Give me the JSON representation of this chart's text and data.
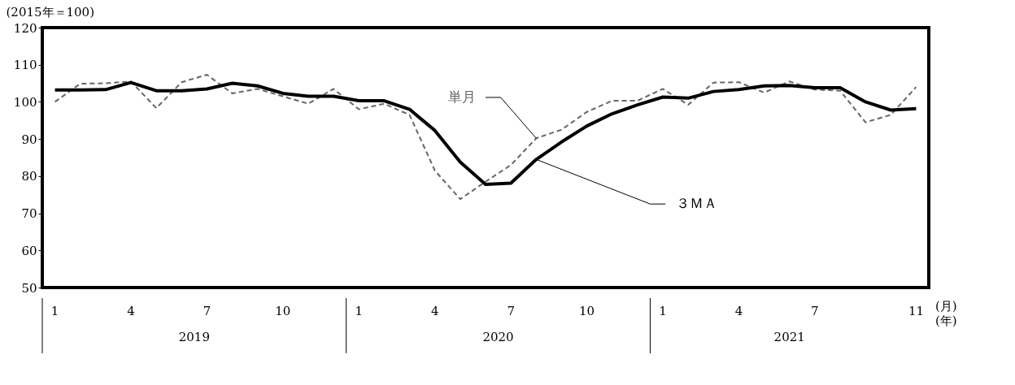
{
  "chart_data": {
    "type": "line",
    "ylabel": "(2015年＝100)",
    "categories": [
      "1",
      null,
      null,
      "4",
      null,
      null,
      "7",
      null,
      null,
      "10",
      null,
      null,
      "1",
      null,
      null,
      "4",
      null,
      null,
      "7",
      null,
      null,
      "10",
      null,
      null,
      "1",
      null,
      null,
      "4",
      null,
      null,
      "7",
      null,
      null,
      null,
      "11"
    ],
    "series": [
      {
        "name": "単月",
        "color": "#666666",
        "line_style": "dashed",
        "values": [
          100,
          104.9,
          105,
          105.5,
          98.3,
          105.3,
          107.3,
          102.3,
          103.5,
          101.5,
          99.5,
          103.5,
          98,
          99.5,
          96.5,
          81.5,
          73.8,
          78.5,
          83,
          90.2,
          92.5,
          97.3,
          100.3,
          100.3,
          103.5,
          99.2,
          105.2,
          105.3,
          102.5,
          105.5,
          103.3,
          103,
          94.5,
          96.5,
          104
        ]
      },
      {
        "name": "３ＭＡ",
        "color": "#000000",
        "line_style": "solid",
        "values": [
          103.2,
          103.2,
          103.3,
          105.2,
          103,
          103,
          103.5,
          105,
          104.3,
          102.3,
          101.5,
          101.5,
          100.3,
          100.3,
          98,
          92.3,
          83.8,
          77.8,
          78.1,
          84.5,
          89.2,
          93.5,
          96.8,
          99.2,
          101.3,
          101,
          102.8,
          103.3,
          104.3,
          104.4,
          103.8,
          103.8,
          100,
          97.8,
          98.2
        ]
      }
    ],
    "ylim": [
      50,
      120
    ],
    "yticks": [
      50,
      60,
      70,
      80,
      90,
      100,
      110,
      120
    ],
    "grid": false,
    "legend": false,
    "marker": "none",
    "annotations": [
      "2019",
      "2020",
      "2021",
      "(月)",
      "(年)"
    ]
  }
}
